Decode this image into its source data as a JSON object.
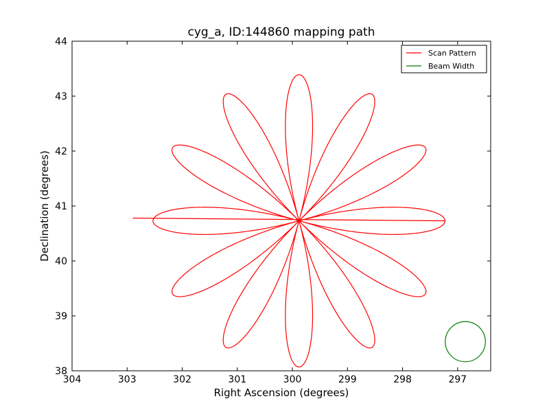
{
  "chart_data": {
    "type": "line",
    "title": "cyg_a, ID:144860 mapping path",
    "xlabel": "Right Ascension (degrees)",
    "ylabel": "Declination (degrees)",
    "xlim": [
      304,
      296.4
    ],
    "ylim": [
      38,
      44
    ],
    "x_ticks": [
      "304",
      "303",
      "302",
      "301",
      "300",
      "299",
      "298",
      "297"
    ],
    "y_ticks": [
      "38",
      "39",
      "40",
      "41",
      "42",
      "43",
      "44"
    ],
    "legend": {
      "position": "top-right",
      "entries": [
        {
          "label": "Scan Pattern",
          "color": "#ff0000"
        },
        {
          "label": "Beam Width",
          "color": "#007f00"
        }
      ]
    },
    "series": [
      {
        "name": "Scan Pattern",
        "kind": "rose",
        "center": {
          "ra": 299.88,
          "dec": 40.73
        },
        "petals": 12,
        "petal_length_dec": 2.66,
        "end_x": 302.9,
        "color": "#ff0000"
      },
      {
        "name": "Beam Width",
        "kind": "circle",
        "center": {
          "ra": 296.86,
          "dec": 38.53
        },
        "radius_dec": 0.365,
        "color": "#007f00"
      }
    ]
  }
}
